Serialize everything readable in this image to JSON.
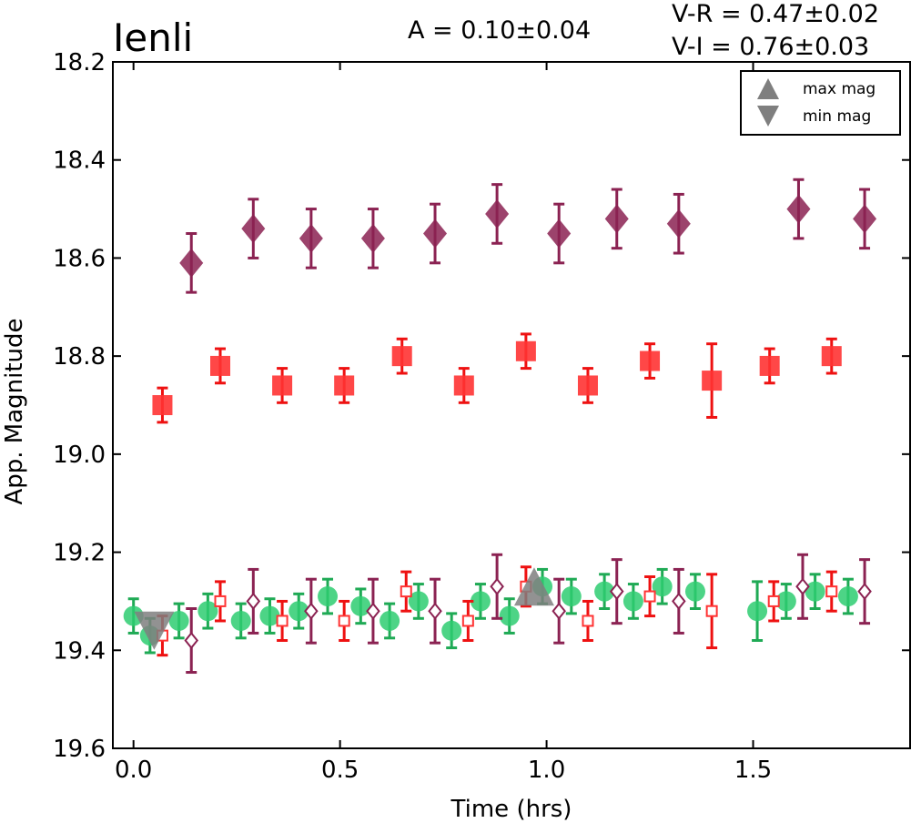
{
  "chart_data": {
    "type": "scatter",
    "title": "Ienli",
    "annotations": {
      "amplitude": "A  = 0.10±0.04",
      "v_r": "V-R = 0.47±0.02",
      "v_i": "V-I  = 0.76±0.03"
    },
    "xlabel": "Time (hrs)",
    "ylabel": "App. Magnitude",
    "xlim": [
      -0.05,
      1.88
    ],
    "ylim": [
      19.6,
      18.2
    ],
    "y_inverted": true,
    "x_ticks": [
      "0.0",
      "0.5",
      "1.0",
      "1.5"
    ],
    "x_tick_values": [
      0.0,
      0.5,
      1.0,
      1.5
    ],
    "y_ticks": [
      "18.2",
      "18.4",
      "18.6",
      "18.8",
      "19.0",
      "19.2",
      "19.4",
      "19.6"
    ],
    "y_tick_values": [
      18.2,
      18.4,
      18.6,
      18.8,
      19.0,
      19.2,
      19.4,
      19.6
    ],
    "grid": false,
    "legend": {
      "placement": "top-right",
      "entries": [
        {
          "label": "max mag",
          "marker": "triangle-up",
          "color": "#7f7f7f"
        },
        {
          "label": "min mag",
          "marker": "triangle-down",
          "color": "#7f7f7f"
        }
      ]
    },
    "colors": {
      "diamond": "#8b2252",
      "square": "#ff3333",
      "circle": "#2ecc71",
      "extrema": "#7f7f7f",
      "err_green": "#1faa55",
      "err_red": "#ee1111"
    },
    "series": [
      {
        "marker": "diamond-filled",
        "x": [
          0.14,
          0.29,
          0.43,
          0.58,
          0.73,
          0.88,
          1.03,
          1.17,
          1.32,
          1.61,
          1.77
        ],
        "y": [
          18.61,
          18.54,
          18.56,
          18.56,
          18.55,
          18.51,
          18.55,
          18.52,
          18.53,
          18.5,
          18.52
        ],
        "err": [
          0.06,
          0.06,
          0.06,
          0.06,
          0.06,
          0.06,
          0.06,
          0.06,
          0.06,
          0.06,
          0.06
        ]
      },
      {
        "marker": "square-filled",
        "x": [
          0.07,
          0.21,
          0.36,
          0.51,
          0.65,
          0.8,
          0.95,
          1.1,
          1.25,
          1.4,
          1.54,
          1.69
        ],
        "y": [
          18.9,
          18.82,
          18.86,
          18.86,
          18.8,
          18.86,
          18.79,
          18.86,
          18.81,
          18.85,
          18.82,
          18.8
        ],
        "err": [
          0.035,
          0.035,
          0.035,
          0.035,
          0.035,
          0.035,
          0.035,
          0.035,
          0.035,
          0.075,
          0.035,
          0.035
        ]
      },
      {
        "marker": "circle-filled",
        "x": [
          0.0,
          0.04,
          0.11,
          0.18,
          0.26,
          0.33,
          0.4,
          0.47,
          0.55,
          0.62,
          0.69,
          0.77,
          0.84,
          0.91,
          0.99,
          1.06,
          1.14,
          1.21,
          1.28,
          1.36,
          1.51,
          1.58,
          1.65,
          1.73
        ],
        "y": [
          19.33,
          19.37,
          19.34,
          19.32,
          19.34,
          19.33,
          19.32,
          19.29,
          19.31,
          19.34,
          19.3,
          19.36,
          19.3,
          19.33,
          19.27,
          19.29,
          19.28,
          19.3,
          19.27,
          19.28,
          19.32,
          19.3,
          19.28,
          19.29
        ],
        "err": [
          0.035,
          0.035,
          0.035,
          0.035,
          0.035,
          0.035,
          0.035,
          0.035,
          0.035,
          0.035,
          0.035,
          0.035,
          0.035,
          0.035,
          0.035,
          0.035,
          0.035,
          0.035,
          0.035,
          0.035,
          0.06,
          0.035,
          0.035,
          0.035
        ]
      },
      {
        "marker": "square-open",
        "x": [
          0.07,
          0.21,
          0.36,
          0.51,
          0.66,
          0.81,
          0.95,
          1.1,
          1.25,
          1.4,
          1.55,
          1.69
        ],
        "y": [
          19.37,
          19.3,
          19.34,
          19.34,
          19.28,
          19.34,
          19.27,
          19.34,
          19.29,
          19.32,
          19.3,
          19.28
        ],
        "err": [
          0.04,
          0.04,
          0.04,
          0.04,
          0.04,
          0.04,
          0.04,
          0.04,
          0.04,
          0.075,
          0.04,
          0.04
        ]
      },
      {
        "marker": "diamond-open",
        "x": [
          0.14,
          0.29,
          0.43,
          0.58,
          0.73,
          0.88,
          1.03,
          1.17,
          1.32,
          1.62,
          1.77
        ],
        "y": [
          19.38,
          19.3,
          19.32,
          19.32,
          19.32,
          19.27,
          19.32,
          19.28,
          19.3,
          19.27,
          19.28
        ],
        "err": [
          0.065,
          0.065,
          0.065,
          0.065,
          0.065,
          0.065,
          0.065,
          0.065,
          0.065,
          0.065,
          0.065
        ]
      },
      {
        "marker": "triangle-up",
        "label": "max mag",
        "x": [
          0.97
        ],
        "y": [
          19.27
        ]
      },
      {
        "marker": "triangle-down",
        "label": "min mag",
        "x": [
          0.05
        ],
        "y": [
          19.36
        ]
      }
    ]
  }
}
